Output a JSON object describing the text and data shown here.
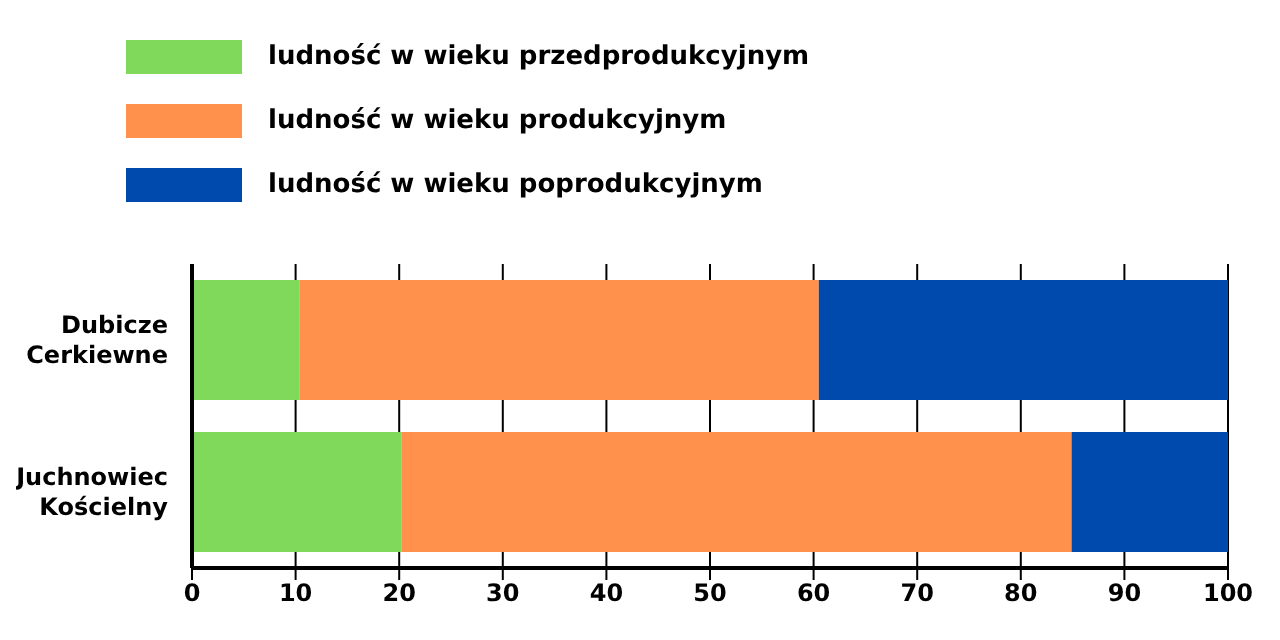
{
  "chart_data": {
    "type": "bar",
    "orientation": "horizontal",
    "stacked": true,
    "categories": [
      "Dubicze Cerkiewne",
      "Juchnowiec Kościelny"
    ],
    "series": [
      {
        "name": "ludność w wieku przedprodukcyjnym",
        "color": "#80d95a",
        "values": [
          10.4,
          20.2
        ]
      },
      {
        "name": "ludność w wieku produkcyjnym",
        "color": "#ff914d",
        "values": [
          50.1,
          64.7
        ]
      },
      {
        "name": "ludność w wieku poprodukcyjnym",
        "color": "#004aad",
        "values": [
          39.5,
          15.1
        ]
      }
    ],
    "xlim": [
      0,
      100
    ],
    "xticks": [
      0,
      10,
      20,
      30,
      40,
      50,
      60,
      70,
      80,
      90,
      100
    ],
    "grid": "x",
    "legend": "top"
  }
}
